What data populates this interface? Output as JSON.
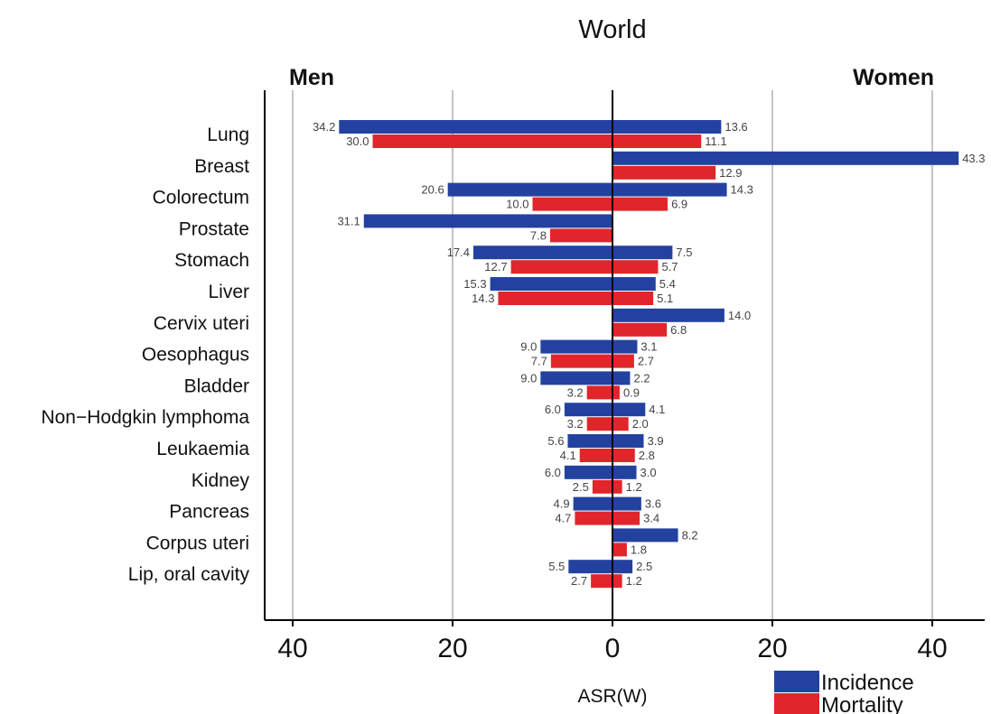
{
  "chart_data": {
    "type": "bar",
    "orientation": "horizontal",
    "layout": "diverging",
    "title": "World",
    "left_label": "Men",
    "right_label": "Women",
    "xlabel": "ASR(W)",
    "xlim": [
      -43,
      46
    ],
    "xticks": [
      -40,
      -20,
      0,
      20,
      40
    ],
    "xtick_labels": [
      "40",
      "20",
      "0",
      "20",
      "40"
    ],
    "grid": "vertical",
    "legend_position": "bottom-right",
    "categories": [
      "Lung",
      "Breast",
      "Colorectum",
      "Prostate",
      "Stomach",
      "Liver",
      "Cervix uteri",
      "Oesophagus",
      "Bladder",
      "Non−Hodgkin lymphoma",
      "Leukaemia",
      "Kidney",
      "Pancreas",
      "Corpus uteri",
      "Lip, oral cavity"
    ],
    "series": [
      {
        "name": "Incidence",
        "color": "#2342a0",
        "men": [
          34.2,
          null,
          20.6,
          31.1,
          17.4,
          15.3,
          null,
          9.0,
          9.0,
          6.0,
          5.6,
          6.0,
          4.9,
          null,
          5.5
        ],
        "women": [
          13.6,
          43.3,
          14.3,
          null,
          7.5,
          5.4,
          14.0,
          3.1,
          2.2,
          4.1,
          3.9,
          3.0,
          3.6,
          8.2,
          2.5
        ]
      },
      {
        "name": "Mortality",
        "color": "#e0262a",
        "men": [
          30.0,
          null,
          10.0,
          7.8,
          12.7,
          14.3,
          null,
          7.7,
          3.2,
          3.2,
          4.1,
          2.5,
          4.7,
          null,
          2.7
        ],
        "women": [
          11.1,
          12.9,
          6.9,
          null,
          5.7,
          5.1,
          6.8,
          2.7,
          0.9,
          2.0,
          2.8,
          1.2,
          3.4,
          1.8,
          1.2
        ]
      }
    ]
  }
}
